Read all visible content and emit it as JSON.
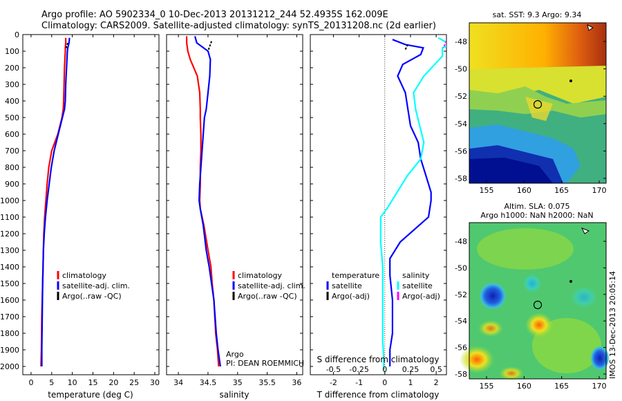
{
  "header": {
    "line1": "Argo profile: AO 5902334_0 10-Dec-2013 20131212_244 52.4935S 162.009E",
    "line2": "Climatology: CARS2009. Satellite-adjusted climatology: synTS_20131208.nc (2d earlier)"
  },
  "colors": {
    "climatology": "#ff0000",
    "satellite": "#0000ff",
    "argo": "#000000",
    "sal_satellite": "#00ffff",
    "sal_argo": "#ff00ff"
  },
  "chart_data": [
    {
      "type": "line",
      "xlabel": "temperature (deg C)",
      "xlim": [
        -2,
        31
      ],
      "xticks": [
        0,
        5,
        10,
        15,
        20,
        25,
        30
      ],
      "ylim": [
        2050,
        0
      ],
      "yticks": [
        0,
        100,
        200,
        300,
        400,
        500,
        600,
        700,
        800,
        900,
        1000,
        1100,
        1200,
        1300,
        1400,
        1500,
        1600,
        1700,
        1800,
        1900,
        2000
      ],
      "legend": [
        "climatology",
        "satellite-adj. clim.",
        "Argo(..raw -QC)"
      ],
      "legend_position": "lower-right",
      "series": [
        {
          "name": "climatology",
          "x": [
            8.4,
            8.4,
            8.3,
            8.3,
            8.1,
            8.0,
            7.9,
            7.8,
            7.5,
            6.5,
            5.0,
            4.3,
            3.9,
            3.6,
            3.3,
            3.1,
            3.0,
            2.9,
            2.8,
            2.6,
            2.5,
            2.4
          ],
          "y": [
            20,
            50,
            80,
            100,
            200,
            300,
            400,
            450,
            500,
            600,
            700,
            800,
            900,
            1000,
            1100,
            1200,
            1300,
            1400,
            1500,
            1700,
            1900,
            2000
          ]
        },
        {
          "name": "satellite-adj. clim.",
          "x": [
            9.3,
            9.2,
            8.9,
            8.8,
            8.6,
            8.4,
            8.3,
            8.1,
            7.6,
            6.6,
            5.6,
            4.9,
            4.4,
            3.9,
            3.5,
            3.2,
            3.0,
            2.9,
            2.8,
            2.7,
            2.6,
            2.6
          ],
          "y": [
            20,
            50,
            80,
            100,
            200,
            300,
            400,
            450,
            500,
            600,
            700,
            800,
            900,
            1000,
            1100,
            1200,
            1300,
            1400,
            1500,
            1700,
            1900,
            2000
          ]
        },
        {
          "name": "Argo(..raw -QC)",
          "x": [
            8.9,
            8.6,
            8.4
          ],
          "y": [
            50,
            70,
            90
          ]
        }
      ]
    },
    {
      "type": "line",
      "xlabel": "salinity",
      "xlim": [
        33.8,
        36.1
      ],
      "xticks": [
        34,
        34.5,
        35,
        35.5,
        36
      ],
      "ylim": [
        2050,
        0
      ],
      "legend": [
        "climatology",
        "satellite-adj. clim.",
        "Argo(..raw -QC)"
      ],
      "legend_position": "lower-right",
      "annotations": [
        "Argo",
        "PI: DEAN ROEMMICH"
      ],
      "series": [
        {
          "name": "climatology",
          "x": [
            34.14,
            34.14,
            34.16,
            34.2,
            34.32,
            34.36,
            34.37,
            34.37,
            34.38,
            34.38,
            34.37,
            34.37,
            34.36,
            34.37,
            34.43,
            34.5,
            34.55,
            34.57,
            34.6,
            34.63,
            34.66,
            34.68
          ],
          "y": [
            10,
            50,
            100,
            150,
            250,
            350,
            450,
            500,
            600,
            700,
            800,
            900,
            1000,
            1050,
            1150,
            1300,
            1400,
            1500,
            1600,
            1800,
            1900,
            2000
          ]
        },
        {
          "name": "satellite-adj. clim.",
          "x": [
            34.28,
            34.31,
            34.5,
            34.54,
            34.53,
            34.5,
            34.47,
            34.44,
            34.42,
            34.4,
            34.38,
            34.36,
            34.35,
            34.37,
            34.42,
            34.47,
            34.52,
            34.56,
            34.6,
            34.64,
            34.67,
            34.71
          ],
          "y": [
            10,
            50,
            100,
            150,
            250,
            350,
            450,
            500,
            600,
            700,
            800,
            900,
            1000,
            1050,
            1150,
            1300,
            1400,
            1500,
            1600,
            1800,
            1900,
            2000
          ]
        },
        {
          "name": "Argo(..raw -QC)",
          "x": [
            34.56,
            34.53,
            34.5
          ],
          "y": [
            40,
            70,
            100
          ]
        }
      ]
    },
    {
      "type": "line",
      "xlabel": "T difference from climatology",
      "xlabel2": "S difference from climatology",
      "xlim": [
        -2.9,
        2.4
      ],
      "xticks": [
        -2,
        -1,
        0,
        1,
        2
      ],
      "xticks2_labels": [
        "-0.5",
        "-0.25",
        "0",
        "0.25",
        "0.5"
      ],
      "ylim": [
        2050,
        0
      ],
      "legend_temperature": [
        "temperature",
        "satellite",
        "Argo(-adj)"
      ],
      "legend_salinity": [
        "salinity",
        "satellite",
        "Argo(-adj)"
      ],
      "series": [
        {
          "name": "temperature satellite",
          "x": [
            0.3,
            0.8,
            1.5,
            1.4,
            0.7,
            0.5,
            0.8,
            0.9,
            1.0,
            1.3,
            1.4,
            1.6,
            1.8,
            1.8,
            1.7,
            0.6,
            0.2,
            0.2,
            0.3,
            0.3,
            0.2,
            0.2
          ],
          "y": [
            30,
            60,
            80,
            120,
            180,
            250,
            350,
            450,
            550,
            650,
            750,
            850,
            950,
            1000,
            1100,
            1250,
            1350,
            1450,
            1600,
            1800,
            1900,
            2000
          ]
        },
        {
          "name": "temperature Argo(-adj)",
          "x": [
            0.9,
            0.8
          ],
          "y": [
            60,
            90
          ]
        },
        {
          "name": "salinity satellite",
          "x": [
            0.52,
            0.64,
            0.56,
            0.56,
            0.38,
            0.28,
            0.3,
            0.34,
            0.38,
            0.35,
            0.22,
            0.12,
            0.02,
            -0.04,
            -0.04,
            -0.02,
            -0.02,
            -0.02,
            -0.02,
            -0.01,
            -0.01
          ],
          "y": [
            20,
            60,
            80,
            130,
            250,
            350,
            450,
            550,
            650,
            750,
            850,
            950,
            1050,
            1100,
            1250,
            1400,
            1550,
            1700,
            1850,
            1950,
            2020
          ]
        },
        {
          "name": "salinity Argo(-adj)",
          "x": [
            0.6,
            0.57
          ],
          "y": [
            40,
            80
          ]
        }
      ]
    }
  ],
  "maps": {
    "sst": {
      "title": "sat. SST: 9.3 Argo: 9.34",
      "xticks": [
        "155",
        "160",
        "165",
        "170"
      ],
      "yticks": [
        "-48",
        "-50",
        "-52",
        "-54",
        "-56",
        "-58"
      ]
    },
    "sla": {
      "title1": "Altim. SLA: 0.075",
      "title2": "Argo h1000: NaN h2000: NaN",
      "xticks": [
        "155",
        "160",
        "165",
        "170"
      ],
      "yticks": [
        "-48",
        "-50",
        "-52",
        "-54",
        "-56",
        "-58"
      ],
      "stamp": "IMOS 13-Dec-2013 20:05:14"
    }
  }
}
